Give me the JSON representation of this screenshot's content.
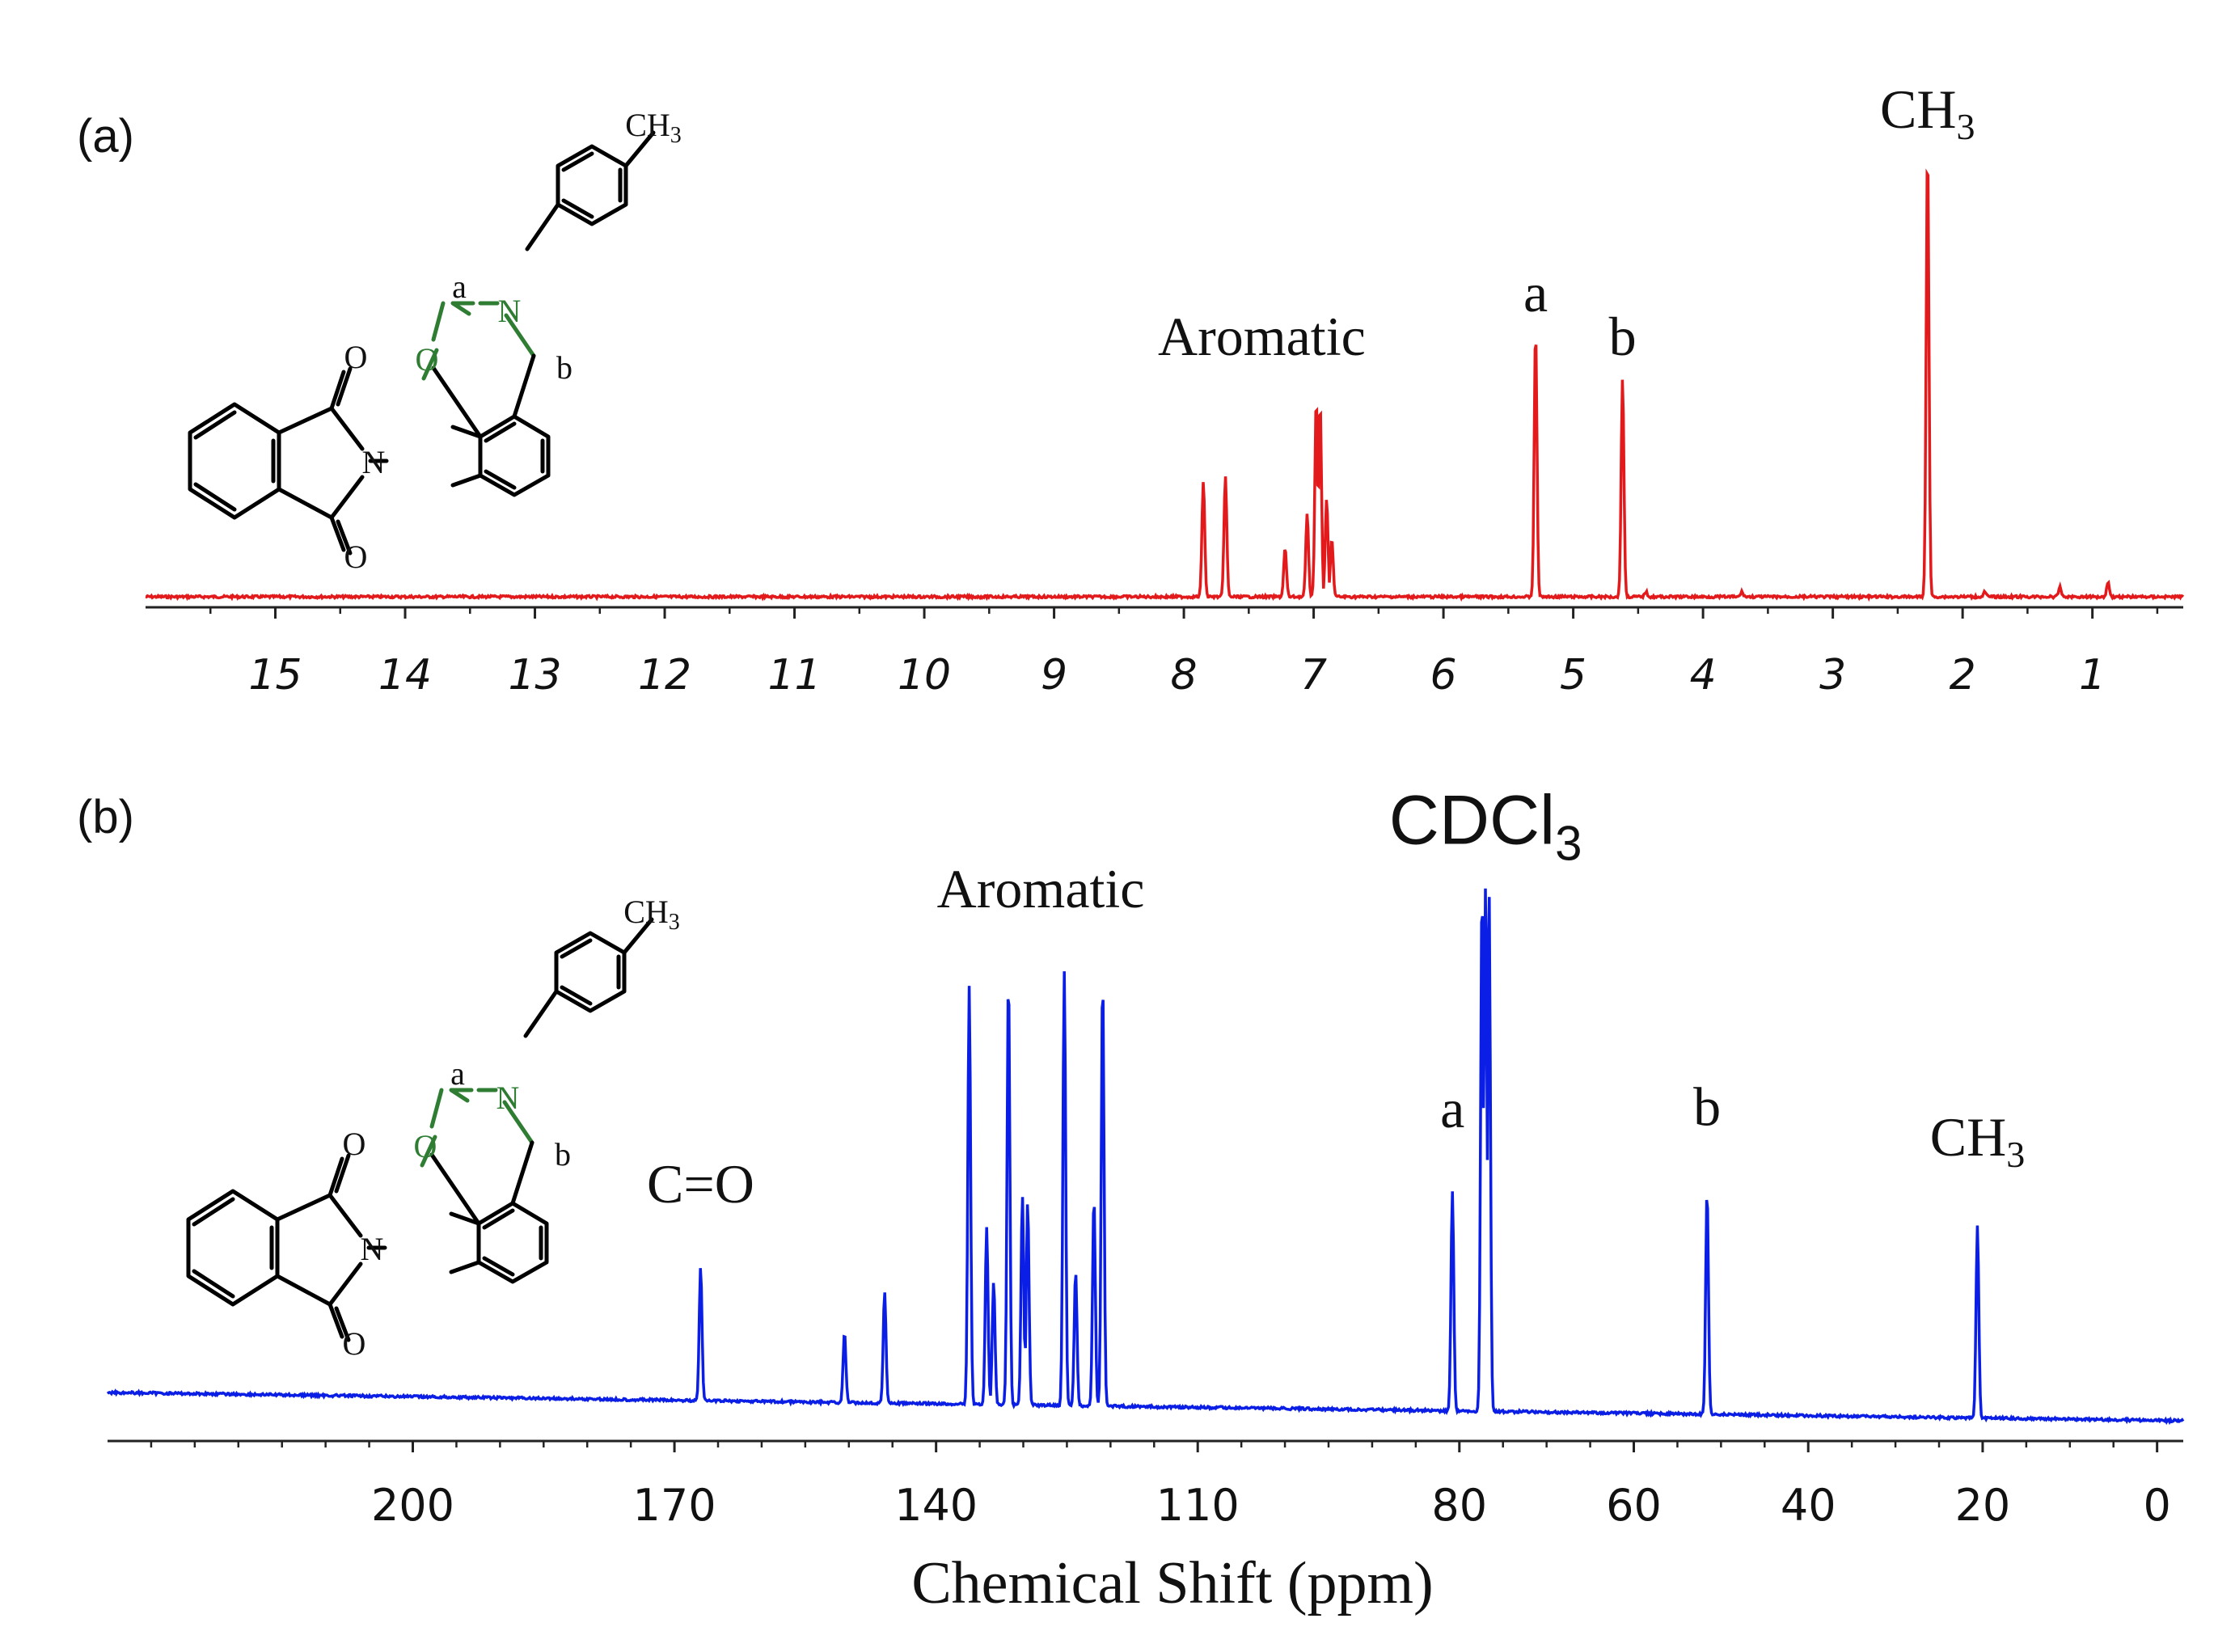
{
  "chart_data": [
    {
      "panel": "(a)",
      "type": "line",
      "color": "#e31a1c",
      "xlim": [
        16.0,
        0.3
      ],
      "xticks": [
        15,
        14,
        13,
        12,
        11,
        10,
        9,
        8,
        7,
        6,
        5,
        4,
        3,
        2,
        1
      ],
      "ylim": [
        0,
        100
      ],
      "baseline": 2,
      "peaks": [
        {
          "x": 7.85,
          "y": 24
        },
        {
          "x": 7.68,
          "y": 25
        },
        {
          "x": 7.22,
          "y": 10
        },
        {
          "x": 7.05,
          "y": 17
        },
        {
          "x": 6.98,
          "y": 41
        },
        {
          "x": 6.95,
          "y": 40
        },
        {
          "x": 6.9,
          "y": 20
        },
        {
          "x": 6.86,
          "y": 12
        },
        {
          "x": 5.29,
          "y": 55
        },
        {
          "x": 4.62,
          "y": 45
        },
        {
          "x": 4.44,
          "y": 1
        },
        {
          "x": 3.7,
          "y": 1
        },
        {
          "x": 2.27,
          "y": 93
        },
        {
          "x": 1.83,
          "y": 1
        },
        {
          "x": 1.25,
          "y": 2
        },
        {
          "x": 0.88,
          "y": 3
        }
      ],
      "annotations": [
        {
          "text": "Aromatic",
          "x": 7.4,
          "y": 50
        },
        {
          "text": "a",
          "x": 5.29,
          "y": 59
        },
        {
          "text": "b",
          "x": 4.62,
          "y": 50
        },
        {
          "text": "CH",
          "sub": "3",
          "x": 2.27,
          "y": 97
        }
      ],
      "structure_labels": {
        "ch3": "CH",
        "ch3_sub": "3",
        "a": "a",
        "b": "b",
        "n1": "N",
        "o1": "O",
        "n2": "N",
        "o2": "O",
        "o3": "O"
      }
    },
    {
      "panel": "(b)",
      "type": "line",
      "color": "#0a1ee6",
      "xlim": [
        235,
        -3
      ],
      "xticks": [
        200,
        170,
        140,
        110,
        80,
        60,
        40,
        20,
        0
      ],
      "minor_ticks": [
        230,
        225,
        220,
        215,
        210,
        205,
        195,
        190,
        185,
        180,
        175,
        165,
        160,
        155,
        150,
        145,
        135,
        130,
        125,
        120,
        115,
        105,
        100,
        95,
        90,
        85,
        75,
        70,
        65,
        55,
        50,
        45,
        35,
        30,
        25,
        15,
        10,
        5
      ],
      "xlabel": "Chemical Shift (ppm)",
      "ylim": [
        0,
        100
      ],
      "baseline_start": 10,
      "baseline_end": 1,
      "peaks": [
        {
          "x": 167.0,
          "y": 25
        },
        {
          "x": 150.5,
          "y": 13
        },
        {
          "x": 145.9,
          "y": 21
        },
        {
          "x": 136.2,
          "y": 78
        },
        {
          "x": 134.2,
          "y": 33
        },
        {
          "x": 133.4,
          "y": 23
        },
        {
          "x": 131.7,
          "y": 80
        },
        {
          "x": 130.1,
          "y": 39
        },
        {
          "x": 129.5,
          "y": 38
        },
        {
          "x": 125.3,
          "y": 81
        },
        {
          "x": 124.0,
          "y": 25
        },
        {
          "x": 121.9,
          "y": 39
        },
        {
          "x": 120.9,
          "y": 80
        },
        {
          "x": 80.8,
          "y": 41
        },
        {
          "x": 77.4,
          "y": 98
        },
        {
          "x": 77.0,
          "y": 98
        },
        {
          "x": 76.6,
          "y": 98
        },
        {
          "x": 51.6,
          "y": 42
        },
        {
          "x": 20.6,
          "y": 36
        }
      ],
      "annotations": [
        {
          "text": "Aromatic",
          "x": 128.0,
          "y": 93
        },
        {
          "text": "C=O",
          "x": 167.0,
          "y": 37
        },
        {
          "text": "CDCl",
          "sub": "3",
          "x": 77.0,
          "y": 106
        },
        {
          "text": "a",
          "x": 80.8,
          "y": 53
        },
        {
          "text": "b",
          "x": 51.6,
          "y": 54
        },
        {
          "text": "CH",
          "sub": "3",
          "x": 20.6,
          "y": 49
        }
      ],
      "structure_labels": {
        "ch3": "CH",
        "ch3_sub": "3",
        "a": "a",
        "b": "b",
        "n1": "N",
        "o1": "O",
        "n2": "N",
        "o2": "O",
        "o3": "O"
      }
    }
  ]
}
